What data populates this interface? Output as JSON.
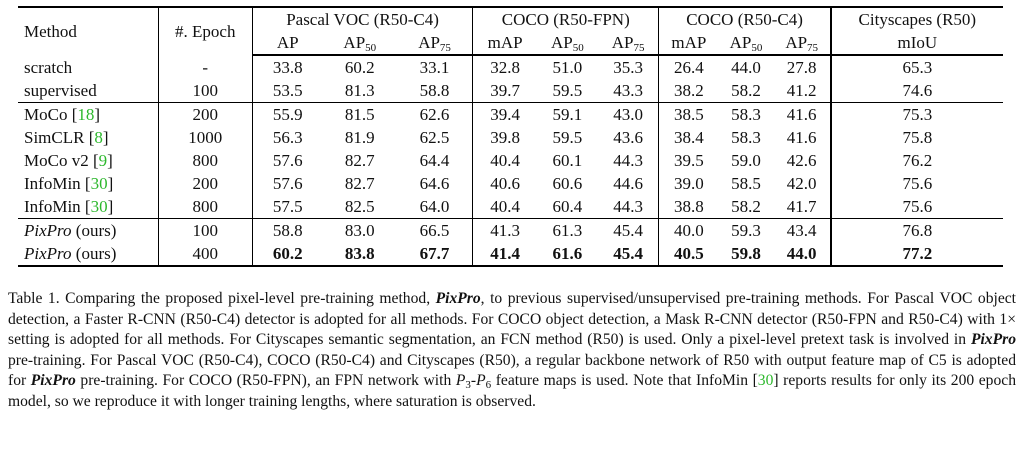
{
  "table": {
    "header": {
      "method": "Method",
      "epoch": "#. Epoch",
      "groups": [
        "Pascal VOC (R50-C4)",
        "COCO (R50-FPN)",
        "COCO (R50-C4)",
        "Cityscapes (R50)"
      ],
      "sub": {
        "ap": "AP",
        "ap50_base": "AP",
        "ap50_sub": "50",
        "ap75_base": "AP",
        "ap75_sub": "75",
        "map": "mAP",
        "miou": "mIoU"
      }
    },
    "rows": [
      {
        "method": "scratch",
        "cite": "",
        "italic": false,
        "epoch": "-",
        "values": [
          "33.8",
          "60.2",
          "33.1",
          "32.8",
          "51.0",
          "35.3",
          "26.4",
          "44.0",
          "27.8",
          "65.3"
        ],
        "bold": false
      },
      {
        "method": "supervised",
        "cite": "",
        "italic": false,
        "epoch": "100",
        "values": [
          "53.5",
          "81.3",
          "58.8",
          "39.7",
          "59.5",
          "43.3",
          "38.2",
          "58.2",
          "41.2",
          "74.6"
        ],
        "bold": false
      },
      {
        "method": "MoCo",
        "cite": "18",
        "italic": false,
        "epoch": "200",
        "values": [
          "55.9",
          "81.5",
          "62.6",
          "39.4",
          "59.1",
          "43.0",
          "38.5",
          "58.3",
          "41.6",
          "75.3"
        ],
        "bold": false
      },
      {
        "method": "SimCLR",
        "cite": "8",
        "italic": false,
        "epoch": "1000",
        "values": [
          "56.3",
          "81.9",
          "62.5",
          "39.8",
          "59.5",
          "43.6",
          "38.4",
          "58.3",
          "41.6",
          "75.8"
        ],
        "bold": false
      },
      {
        "method": "MoCo v2",
        "cite": "9",
        "italic": false,
        "epoch": "800",
        "values": [
          "57.6",
          "82.7",
          "64.4",
          "40.4",
          "60.1",
          "44.3",
          "39.5",
          "59.0",
          "42.6",
          "76.2"
        ],
        "bold": false
      },
      {
        "method": "InfoMin",
        "cite": "30",
        "italic": false,
        "epoch": "200",
        "values": [
          "57.6",
          "82.7",
          "64.6",
          "40.6",
          "60.6",
          "44.6",
          "39.0",
          "58.5",
          "42.0",
          "75.6"
        ],
        "bold": false
      },
      {
        "method": "InfoMin",
        "cite": "30",
        "italic": false,
        "epoch": "800",
        "values": [
          "57.5",
          "82.5",
          "64.0",
          "40.4",
          "60.4",
          "44.3",
          "38.8",
          "58.2",
          "41.7",
          "75.6"
        ],
        "bold": false
      },
      {
        "method": "PixPro",
        "suffix": " (ours)",
        "cite": "",
        "italic": true,
        "epoch": "100",
        "values": [
          "58.8",
          "83.0",
          "66.5",
          "41.3",
          "61.3",
          "45.4",
          "40.0",
          "59.3",
          "43.4",
          "76.8"
        ],
        "bold": false
      },
      {
        "method": "PixPro",
        "suffix": " (ours)",
        "cite": "",
        "italic": true,
        "epoch": "400",
        "values": [
          "60.2",
          "83.8",
          "67.7",
          "41.4",
          "61.6",
          "45.4",
          "40.5",
          "59.8",
          "44.0",
          "77.2"
        ],
        "bold": true
      }
    ]
  },
  "caption": {
    "p1": "Table 1. Comparing the proposed pixel-level pre-training method, ",
    "pixpro": "PixPro",
    "p2": ", to previous supervised/unsupervised pre-training methods. For Pascal VOC object detection, a Faster R-CNN (R50-C4) detector is adopted for all methods. For COCO object detection, a Mask R-CNN detector (R50-FPN and R50-C4) with 1× setting is adopted for all methods. For Cityscapes semantic segmentation, an FCN method (R50) is used. Only a pixel-level pretext task is involved in ",
    "p3": " pre-training. For Pascal VOC (R50-C4), COCO (R50-C4) and Cityscapes (R50), a regular backbone network of R50 with output feature map of C5 is adopted for ",
    "p4": " pre-training. For COCO (R50-FPN), an FPN network with ",
    "p3sym": "P",
    "p3sub": "3",
    "dash": "-",
    "p6sym": "P",
    "p6sub": "6",
    "p5": " feature maps is used. Note that InfoMin [",
    "cite": "30",
    "p6": "] reports results for only its 200 epoch model, so we reproduce it with longer training lengths, where saturation is observed."
  }
}
